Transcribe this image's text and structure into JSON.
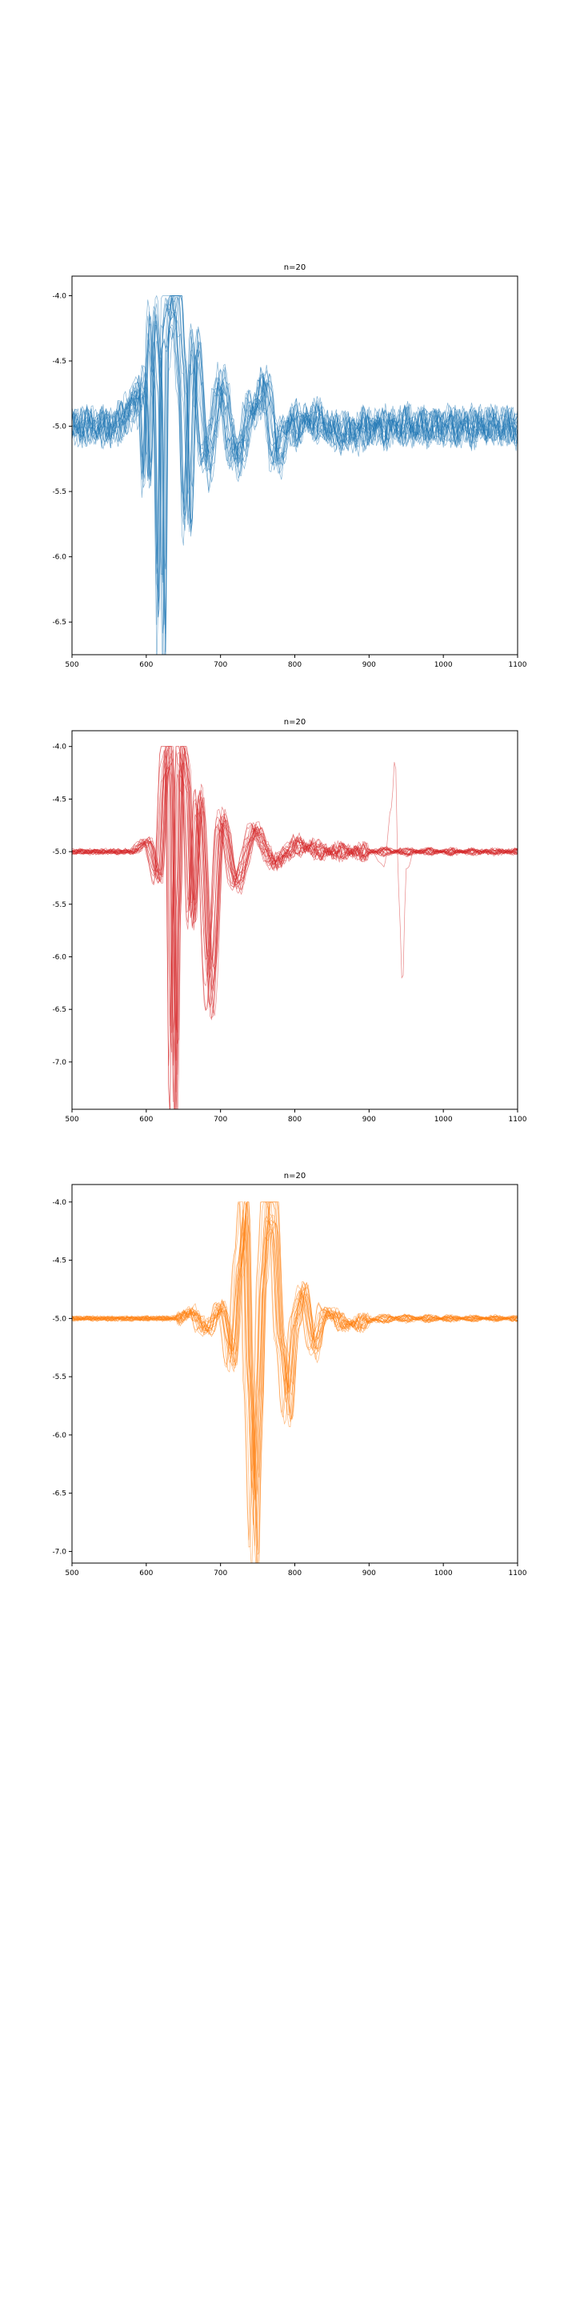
{
  "chart_data": [
    {
      "type": "line",
      "title": "n=20",
      "color": "#1f77b4",
      "n_traces": 20,
      "xlim": [
        500,
        1100
      ],
      "ylim": [
        -6.75,
        -3.85
      ],
      "xticks": [
        500,
        600,
        700,
        800,
        900,
        1000,
        1100
      ],
      "yticks": [
        -4.0,
        -4.5,
        -5.0,
        -5.5,
        -6.0,
        -6.5
      ],
      "xtick_labels": [
        "500",
        "600",
        "700",
        "800",
        "900",
        "1000",
        "1100"
      ],
      "ytick_labels": [
        "-4.0",
        "-4.5",
        "-5.0",
        "-5.5",
        "-6.0",
        "-6.5"
      ],
      "grid": false,
      "baseline": -5.0,
      "clip_max": -4.0,
      "waveform_x": [
        500,
        560,
        580,
        595,
        600,
        608,
        615,
        620,
        625,
        632,
        640,
        648,
        655,
        665,
        680,
        700,
        720,
        745,
        760,
        775,
        790,
        820,
        860,
        920,
        1000,
        1100
      ],
      "waveform_y": [
        -5.0,
        -5.0,
        -4.85,
        -4.7,
        -5.4,
        -4.2,
        -4.6,
        -6.55,
        -4.3,
        -4.05,
        -4.0,
        -4.6,
        -5.7,
        -4.4,
        -5.3,
        -4.7,
        -5.25,
        -4.85,
        -4.7,
        -5.25,
        -5.0,
        -4.95,
        -5.05,
        -5.0,
        -5.0,
        -5.0
      ]
    },
    {
      "type": "line",
      "title": "n=20",
      "color": "#d62728",
      "n_traces": 20,
      "xlim": [
        500,
        1100
      ],
      "ylim": [
        -7.45,
        -3.85
      ],
      "xticks": [
        500,
        600,
        700,
        800,
        900,
        1000,
        1100
      ],
      "yticks": [
        -4.0,
        -4.5,
        -5.0,
        -5.5,
        -6.0,
        -6.5,
        -7.0
      ],
      "xtick_labels": [
        "500",
        "600",
        "700",
        "800",
        "900",
        "1000",
        "1100"
      ],
      "ytick_labels": [
        "-4.0",
        "-4.5",
        "-5.0",
        "-5.5",
        "-6.0",
        "-6.5",
        "-7.0"
      ],
      "grid": false,
      "baseline": -5.0,
      "clip_max": -4.0,
      "waveform_x": [
        500,
        580,
        600,
        615,
        625,
        630,
        636,
        640,
        645,
        652,
        660,
        670,
        685,
        700,
        720,
        745,
        770,
        800,
        850,
        930,
        1000,
        1100
      ],
      "waveform_y": [
        -5.0,
        -5.0,
        -4.9,
        -5.25,
        -4.1,
        -4.0,
        -7.2,
        -5.5,
        -4.0,
        -4.25,
        -5.6,
        -4.5,
        -6.3,
        -4.7,
        -5.3,
        -4.8,
        -5.1,
        -4.95,
        -5.0,
        -5.0,
        -5.0,
        -5.0
      ],
      "outlier_x": [
        500,
        900,
        920,
        930,
        935,
        940,
        945,
        950,
        960,
        1100
      ],
      "outlier_y": [
        -5.0,
        -5.0,
        -5.1,
        -4.6,
        -4.1,
        -5.4,
        -6.3,
        -5.2,
        -5.0,
        -5.0
      ]
    },
    {
      "type": "line",
      "title": "n=20",
      "color": "#ff7f0e",
      "n_traces": 20,
      "xlim": [
        500,
        1100
      ],
      "ylim": [
        -7.1,
        -3.85
      ],
      "xticks": [
        500,
        600,
        700,
        800,
        900,
        1000,
        1100
      ],
      "yticks": [
        -4.0,
        -4.5,
        -5.0,
        -5.5,
        -6.0,
        -6.5,
        -7.0
      ],
      "xtick_labels": [
        "500",
        "600",
        "700",
        "800",
        "900",
        "1000",
        "1100"
      ],
      "ytick_labels": [
        "-4.0",
        "-4.5",
        "-5.0",
        "-5.5",
        "-6.0",
        "-6.5",
        "-7.0"
      ],
      "grid": false,
      "baseline": -5.0,
      "clip_max": -4.0,
      "waveform_x": [
        500,
        640,
        660,
        680,
        700,
        715,
        725,
        732,
        738,
        745,
        750,
        756,
        762,
        770,
        780,
        790,
        800,
        810,
        825,
        840,
        870,
        920,
        1000,
        1100
      ],
      "waveform_y": [
        -5.0,
        -5.0,
        -4.95,
        -5.1,
        -4.9,
        -5.35,
        -4.5,
        -4.0,
        -5.6,
        -6.8,
        -5.8,
        -4.6,
        -4.0,
        -4.05,
        -5.2,
        -5.75,
        -5.0,
        -4.75,
        -5.25,
        -4.95,
        -5.05,
        -5.0,
        -5.0,
        -5.0
      ]
    }
  ]
}
